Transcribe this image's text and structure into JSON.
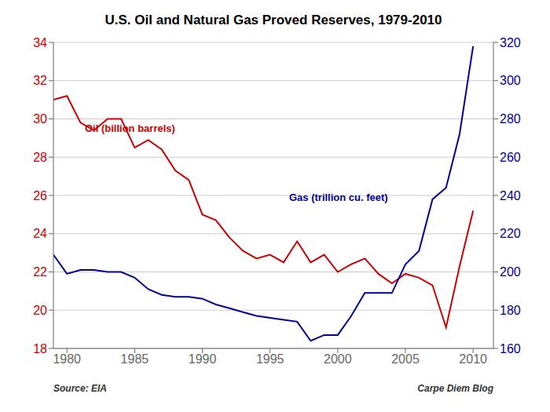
{
  "chart_data": {
    "type": "line",
    "title": "U.S. Oil and Natural Gas Proved Reserves, 1979-2010",
    "x": [
      1979,
      1980,
      1981,
      1982,
      1983,
      1984,
      1985,
      1986,
      1987,
      1988,
      1989,
      1990,
      1991,
      1992,
      1993,
      1994,
      1995,
      1996,
      1997,
      1998,
      1999,
      2000,
      2001,
      2002,
      2003,
      2004,
      2005,
      2006,
      2007,
      2008,
      2009,
      2010
    ],
    "series": [
      {
        "name": "Oil (billion barrels)",
        "color": "#cc0000",
        "values": [
          31.0,
          31.2,
          29.8,
          29.4,
          30.0,
          30.0,
          28.5,
          28.9,
          28.4,
          27.3,
          26.8,
          25.0,
          24.7,
          23.8,
          23.1,
          22.7,
          22.9,
          22.5,
          23.6,
          22.5,
          22.9,
          22.0,
          22.4,
          22.7,
          21.9,
          21.4,
          21.9,
          21.7,
          21.3,
          19.1,
          22.3,
          25.2
        ]
      },
      {
        "name": "Gas (trillion cu. feet)",
        "color": "#000099",
        "axis": "y2",
        "values": [
          209,
          199,
          201,
          201,
          200,
          200,
          197,
          191,
          188,
          187,
          187,
          186,
          183,
          181,
          179,
          177,
          176,
          175,
          174,
          164,
          167,
          167,
          177,
          189,
          189,
          189,
          204,
          211,
          238,
          244,
          272,
          318
        ]
      }
    ],
    "xlim": [
      1979,
      2011.5
    ],
    "xticks": [
      1980,
      1985,
      1990,
      1995,
      2000,
      2005,
      2010
    ],
    "ylim": [
      18,
      34
    ],
    "yticks": [
      18,
      20,
      22,
      24,
      26,
      28,
      30,
      32,
      34
    ],
    "y2lim": [
      160,
      320
    ],
    "y2ticks": [
      160,
      180,
      200,
      220,
      240,
      260,
      280,
      300,
      320
    ],
    "grid": true,
    "annotations": [
      "Source: EIA",
      "Carpe Diem Blog"
    ]
  }
}
